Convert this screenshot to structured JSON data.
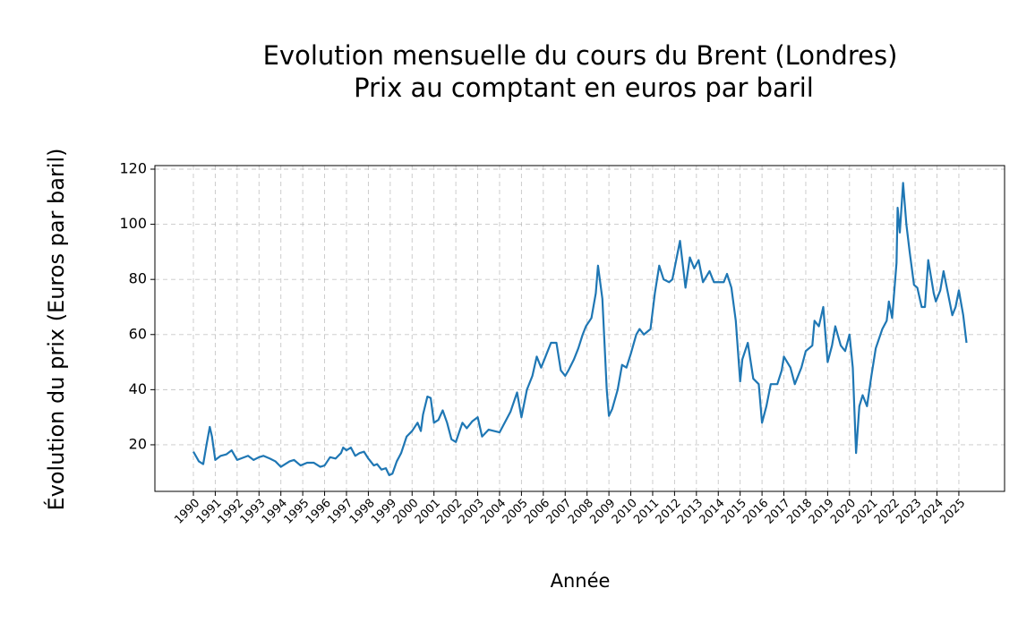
{
  "chart_data": {
    "type": "line",
    "title": "Evolution mensuelle du cours du Brent (Londres)",
    "subtitle": "Prix au comptant en euros par baril",
    "x_label": "Année",
    "y_label": "Évolution du prix (Euros par baril)",
    "color": "#1f77b4",
    "grid": true,
    "xlim": [
      1988.24,
      2027.09
    ],
    "ylim": [
      3.1,
      121.3
    ],
    "xticks": [
      1990,
      1991,
      1992,
      1993,
      1994,
      1995,
      1996,
      1997,
      1998,
      1999,
      2000,
      2001,
      2002,
      2003,
      2004,
      2005,
      2006,
      2007,
      2008,
      2009,
      2010,
      2011,
      2012,
      2013,
      2014,
      2015,
      2016,
      2017,
      2018,
      2019,
      2020,
      2021,
      2022,
      2023,
      2024,
      2025
    ],
    "yticks": [
      20,
      40,
      60,
      80,
      100,
      120
    ],
    "x": [
      1990.0,
      1990.25,
      1990.45,
      1990.6,
      1990.75,
      1990.85,
      1991.0,
      1991.25,
      1991.5,
      1991.75,
      1992.0,
      1992.5,
      1992.75,
      1993.0,
      1993.2,
      1993.5,
      1993.75,
      1994.0,
      1994.4,
      1994.6,
      1994.9,
      1995.2,
      1995.5,
      1995.8,
      1996.0,
      1996.25,
      1996.5,
      1996.75,
      1996.85,
      1997.0,
      1997.2,
      1997.4,
      1997.6,
      1997.8,
      1998.0,
      1998.25,
      1998.4,
      1998.6,
      1998.8,
      1998.95,
      1999.1,
      1999.3,
      1999.5,
      1999.75,
      2000.0,
      2000.25,
      2000.4,
      2000.5,
      2000.7,
      2000.85,
      2001.0,
      2001.2,
      2001.4,
      2001.6,
      2001.8,
      2002.0,
      2002.3,
      2002.5,
      2002.75,
      2003.0,
      2003.2,
      2003.5,
      2003.75,
      2004.0,
      2004.3,
      2004.5,
      2004.8,
      2005.0,
      2005.25,
      2005.5,
      2005.7,
      2005.9,
      2006.1,
      2006.35,
      2006.6,
      2006.8,
      2007.0,
      2007.15,
      2007.4,
      2007.6,
      2007.8,
      2007.95,
      2008.2,
      2008.4,
      2008.5,
      2008.7,
      2008.9,
      2009.0,
      2009.15,
      2009.4,
      2009.6,
      2009.8,
      2010.0,
      2010.25,
      2010.4,
      2010.6,
      2010.9,
      2011.1,
      2011.3,
      2011.5,
      2011.75,
      2011.9,
      2012.15,
      2012.25,
      2012.5,
      2012.7,
      2012.9,
      2013.1,
      2013.3,
      2013.6,
      2013.8,
      2014.0,
      2014.25,
      2014.4,
      2014.6,
      2014.8,
      2015.0,
      2015.1,
      2015.35,
      2015.6,
      2015.85,
      2016.0,
      2016.2,
      2016.4,
      2016.7,
      2016.9,
      2017.0,
      2017.3,
      2017.5,
      2017.8,
      2018.0,
      2018.3,
      2018.4,
      2018.6,
      2018.8,
      2019.0,
      2019.2,
      2019.35,
      2019.6,
      2019.8,
      2020.0,
      2020.15,
      2020.3,
      2020.45,
      2020.6,
      2020.8,
      2021.0,
      2021.2,
      2021.5,
      2021.7,
      2021.8,
      2021.95,
      2022.15,
      2022.2,
      2022.3,
      2022.45,
      2022.6,
      2022.75,
      2022.95,
      2023.1,
      2023.3,
      2023.45,
      2023.6,
      2023.85,
      2023.95,
      2024.15,
      2024.3,
      2024.5,
      2024.7,
      2024.85,
      2025.0,
      2025.2,
      2025.35
    ],
    "values": [
      17.5,
      14,
      13,
      20,
      26.5,
      23,
      14.5,
      16,
      16.5,
      18,
      14.5,
      16,
      14.5,
      15.5,
      16,
      15,
      14,
      12,
      14,
      14.5,
      12.5,
      13.5,
      13.5,
      12,
      12.5,
      15.5,
      15,
      17,
      19,
      18,
      19,
      16,
      17,
      17.5,
      15,
      12.5,
      13,
      11,
      11.5,
      9,
      9.5,
      14,
      17,
      23,
      25,
      28,
      25,
      31,
      37.5,
      37,
      28,
      29,
      32.5,
      28,
      22,
      21,
      28,
      26,
      28.5,
      30,
      23,
      25.5,
      25,
      24.5,
      29,
      32,
      39,
      30,
      40,
      45,
      52,
      48,
      52,
      57,
      57,
      47,
      45,
      47,
      51,
      55,
      60,
      63,
      66,
      75,
      85,
      73,
      40,
      30.5,
      33,
      40,
      49,
      48,
      53,
      60,
      62,
      60,
      62,
      75,
      85,
      80,
      79,
      80,
      90,
      94,
      77,
      88,
      84,
      87,
      79,
      83,
      79,
      79,
      79,
      82,
      77,
      65,
      43,
      51,
      57,
      44,
      42,
      28,
      34,
      42,
      42,
      47,
      52,
      48,
      42,
      48,
      54,
      56,
      65,
      63,
      70,
      50,
      56,
      63,
      56,
      54,
      60,
      48,
      17,
      34,
      38,
      34,
      45,
      55,
      62,
      65,
      72,
      66,
      86,
      106,
      97,
      115,
      100,
      90,
      78,
      77,
      70,
      70,
      87,
      75,
      72,
      76,
      83,
      75,
      67,
      70,
      76,
      67,
      57
    ]
  }
}
